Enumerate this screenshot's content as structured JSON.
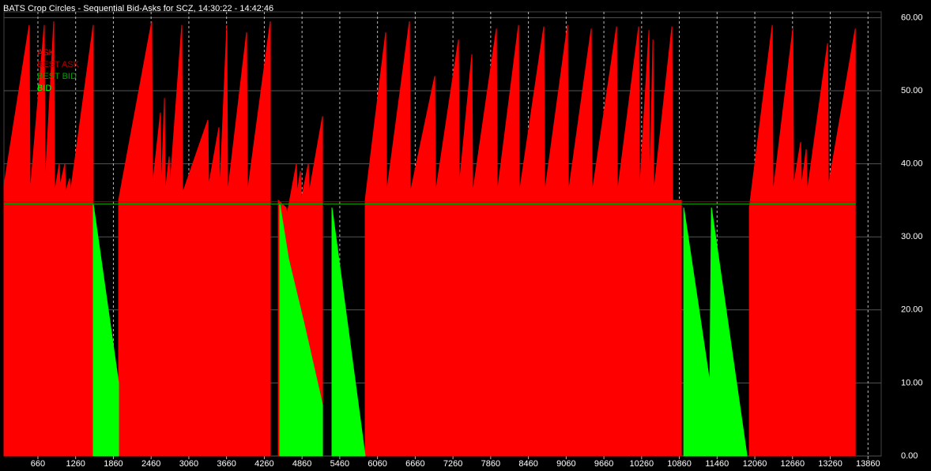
{
  "chart_data": {
    "type": "area",
    "title": "BATS Crop Circles - Sequential Bid-Asks for SCZ, 14:30:22 - 14:42:46",
    "xlim": [
      120,
      14070
    ],
    "ylim": [
      0,
      60.8
    ],
    "xticks": [
      660,
      1260,
      1860,
      2460,
      3060,
      3660,
      4260,
      4860,
      5460,
      6060,
      6660,
      7260,
      7860,
      8460,
      9060,
      9660,
      10260,
      10860,
      11460,
      12060,
      12660,
      13260,
      13860
    ],
    "yticks": [
      {
        "value": 0,
        "label": "0.00"
      },
      {
        "value": 10,
        "label": "10.00"
      },
      {
        "value": 20,
        "label": "20.00"
      },
      {
        "value": 30,
        "label": "30.00"
      },
      {
        "value": 40,
        "label": "40.00"
      },
      {
        "value": 50,
        "label": "50.00"
      },
      {
        "value": 60,
        "label": "60.00"
      }
    ],
    "grid": true,
    "legend": "upper left",
    "series": [
      {
        "name": "ASK",
        "color": "#ff0000",
        "style": "area",
        "x": [
          120,
          522,
          535,
          761,
          773,
          912,
          924,
          1000,
          1012,
          1088,
          1100,
          1163,
          1176,
          1540,
          1740,
          1943,
          2470,
          2483,
          2609,
          2621,
          2672,
          2684,
          2747,
          2760,
          2948,
          2961,
          3363,
          3375,
          3539,
          3551,
          3664,
          3677,
          3979,
          3991,
          4356,
          4420,
          4482,
          4607,
          4620,
          4771,
          4783,
          4834,
          4846,
          4960,
          4972,
          5186,
          5500,
          5864,
          6191,
          6204,
          6568,
          6581,
          6971,
          6983,
          7348,
          7360,
          7561,
          7574,
          7951,
          7964,
          8303,
          8315,
          8705,
          8718,
          9082,
          9095,
          9459,
          9472,
          9862,
          9874,
          10213,
          10226,
          10377,
          10390,
          10440,
          10452,
          10742,
          10754,
          10892,
          11400,
          11973,
          12338,
          12350,
          12665,
          12677,
          12790,
          12803,
          12878,
          12891,
          13218,
          13231,
          13658
        ],
        "values": [
          37,
          59,
          36,
          59,
          37,
          59.5,
          36,
          40,
          37,
          40,
          36,
          38,
          36,
          59,
          null,
          35,
          59.5,
          37,
          47,
          36,
          49,
          36,
          41,
          37,
          59,
          36,
          46,
          37,
          45,
          36,
          59,
          36,
          58,
          36,
          59.5,
          null,
          35,
          34,
          33,
          40,
          36,
          39,
          35,
          40,
          36,
          46.5,
          null,
          35,
          58,
          36,
          59.5,
          36,
          52,
          36,
          57,
          37,
          55,
          36,
          58.5,
          36,
          59,
          36,
          58.8,
          36,
          59,
          36,
          58.5,
          36,
          58.8,
          36,
          58.8,
          36,
          58.3,
          36,
          57,
          36,
          58.8,
          35,
          35,
          null,
          34,
          59,
          36,
          58.5,
          37,
          43,
          37,
          42,
          36,
          56.5,
          37,
          58.5
        ]
      },
      {
        "name": "BEST ASK",
        "color": "#b00000",
        "style": "line",
        "x": [
          120,
          13670
        ],
        "values": [
          34.8,
          34.8
        ]
      },
      {
        "name": "BEST BID",
        "color": "#00a000",
        "style": "line",
        "x": [
          120,
          13670
        ],
        "values": [
          34.5,
          34.5
        ]
      },
      {
        "name": "BID",
        "color": "#00ff00",
        "style": "area",
        "x": [
          1540,
          1943,
          3000,
          4507,
          4645,
          4896,
          5186,
          5260,
          5336,
          5864,
          8000,
          10930,
          11345,
          11370,
          11936
        ],
        "values": [
          34.5,
          10,
          null,
          34.5,
          27,
          18,
          7,
          null,
          34,
          0,
          null,
          34,
          10,
          34,
          0
        ]
      }
    ]
  }
}
